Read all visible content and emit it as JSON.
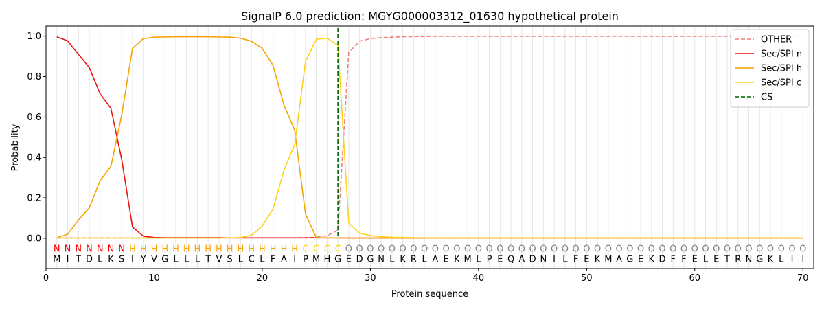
{
  "chart_data": {
    "type": "line",
    "title": "SignalP 6.0 prediction: MGYG000003312_01630 hypothetical protein",
    "xlabel": "Protein sequence",
    "ylabel": "Probability",
    "xlim": [
      0,
      71
    ],
    "ylim": [
      -0.15,
      1.05
    ],
    "xticks": [
      0,
      10,
      20,
      30,
      40,
      50,
      60,
      70
    ],
    "yticks": [
      0.0,
      0.2,
      0.4,
      0.6,
      0.8,
      1.0
    ],
    "xtick_labels": [
      "0",
      "10",
      "20",
      "30",
      "40",
      "50",
      "60",
      "70"
    ],
    "ytick_labels": [
      "0.0",
      "0.2",
      "0.4",
      "0.6",
      "0.8",
      "1.0"
    ],
    "legend_position": "top-right",
    "grid": "vertical lines at each residue",
    "sequence": [
      "M",
      "I",
      "T",
      "D",
      "L",
      "K",
      "S",
      "I",
      "Y",
      "V",
      "G",
      "L",
      "L",
      "L",
      "T",
      "V",
      "S",
      "L",
      "C",
      "L",
      "F",
      "A",
      "I",
      "P",
      "M",
      "H",
      "G",
      "E",
      "D",
      "G",
      "N",
      "L",
      "K",
      "R",
      "L",
      "A",
      "E",
      "K",
      "M",
      "L",
      "P",
      "E",
      "Q",
      "A",
      "D",
      "N",
      "I",
      "L",
      "F",
      "E",
      "K",
      "M",
      "A",
      "G",
      "E",
      "K",
      "D",
      "F",
      "F",
      "E",
      "L",
      "E",
      "T",
      "R",
      "N",
      "G",
      "K",
      "L",
      "I",
      "I"
    ],
    "region_labels": [
      "N",
      "N",
      "N",
      "N",
      "N",
      "N",
      "N",
      "H",
      "H",
      "H",
      "H",
      "H",
      "H",
      "H",
      "H",
      "H",
      "H",
      "H",
      "H",
      "H",
      "H",
      "H",
      "H",
      "C",
      "C",
      "C",
      "C",
      "O",
      "O",
      "O",
      "O",
      "O",
      "O",
      "O",
      "O",
      "O",
      "O",
      "O",
      "O",
      "O",
      "O",
      "O",
      "O",
      "O",
      "O",
      "O",
      "O",
      "O",
      "O",
      "O",
      "O",
      "O",
      "O",
      "O",
      "O",
      "O",
      "O",
      "O",
      "O",
      "O",
      "O",
      "O",
      "O",
      "O",
      "O",
      "O",
      "O",
      "O",
      "O",
      "O"
    ],
    "region_colors": {
      "N": "#ff0000",
      "H": "#ffa500",
      "C": "#ffd700",
      "O": "#808080"
    },
    "cs_position": 27,
    "series": [
      {
        "name": "OTHER",
        "color": "#f08080",
        "dash": "dashed",
        "values": [
          0.002,
          0.002,
          0.002,
          0.002,
          0.002,
          0.002,
          0.002,
          0.002,
          0.002,
          0.002,
          0.002,
          0.002,
          0.002,
          0.002,
          0.002,
          0.002,
          0.002,
          0.002,
          0.002,
          0.002,
          0.002,
          0.002,
          0.002,
          0.003,
          0.005,
          0.012,
          0.04,
          0.92,
          0.975,
          0.988,
          0.993,
          0.995,
          0.997,
          0.998,
          0.998,
          0.999,
          0.999,
          0.999,
          0.999,
          0.999,
          0.999,
          0.999,
          0.999,
          0.999,
          0.999,
          0.999,
          0.999,
          0.999,
          0.999,
          0.999,
          0.999,
          0.999,
          0.999,
          0.999,
          0.999,
          0.999,
          0.999,
          0.999,
          0.999,
          0.999,
          0.999,
          0.999,
          0.999,
          0.999,
          0.999,
          0.999,
          0.999,
          0.999,
          0.999,
          0.999
        ]
      },
      {
        "name": "Sec/SPI n",
        "color": "#ee1111",
        "dash": "solid",
        "values": [
          0.997,
          0.977,
          0.91,
          0.845,
          0.715,
          0.643,
          0.39,
          0.055,
          0.01,
          0.004,
          0.003,
          0.003,
          0.003,
          0.003,
          0.003,
          0.003,
          0.002,
          0.002,
          0.002,
          0.002,
          0.002,
          0.002,
          0.002,
          0.002,
          0.002,
          0.002,
          0.002,
          0.001,
          0.001,
          0.001,
          0.001,
          0.001,
          0.001,
          0.001,
          0.001,
          0.001,
          0.001,
          0.001,
          0.001,
          0.001,
          0.001,
          0.001,
          0.001,
          0.001,
          0.001,
          0.001,
          0.001,
          0.001,
          0.001,
          0.001,
          0.001,
          0.001,
          0.001,
          0.001,
          0.001,
          0.001,
          0.001,
          0.001,
          0.001,
          0.001,
          0.001,
          0.001,
          0.001,
          0.001,
          0.001,
          0.001,
          0.001,
          0.001,
          0.001,
          0.001
        ]
      },
      {
        "name": "Sec/SPI h",
        "color": "#f5a300",
        "dash": "solid",
        "values": [
          0.002,
          0.02,
          0.09,
          0.15,
          0.285,
          0.355,
          0.61,
          0.94,
          0.988,
          0.995,
          0.996,
          0.997,
          0.997,
          0.997,
          0.997,
          0.996,
          0.995,
          0.99,
          0.975,
          0.94,
          0.855,
          0.66,
          0.535,
          0.12,
          0.003,
          0.002,
          0.002,
          0.001,
          0.001,
          0.001,
          0.001,
          0.001,
          0.001,
          0.001,
          0.001,
          0.001,
          0.001,
          0.001,
          0.001,
          0.001,
          0.001,
          0.001,
          0.001,
          0.001,
          0.001,
          0.001,
          0.001,
          0.001,
          0.001,
          0.001,
          0.001,
          0.001,
          0.001,
          0.001,
          0.001,
          0.001,
          0.001,
          0.001,
          0.001,
          0.001,
          0.001,
          0.001,
          0.001,
          0.001,
          0.001,
          0.001,
          0.001,
          0.001,
          0.001,
          0.001
        ]
      },
      {
        "name": "Sec/SPI c",
        "color": "#ffd21a",
        "dash": "solid",
        "values": [
          0.001,
          0.001,
          0.001,
          0.001,
          0.001,
          0.001,
          0.001,
          0.001,
          0.001,
          0.001,
          0.001,
          0.001,
          0.001,
          0.001,
          0.001,
          0.001,
          0.002,
          0.004,
          0.015,
          0.06,
          0.145,
          0.335,
          0.465,
          0.875,
          0.985,
          0.99,
          0.955,
          0.075,
          0.025,
          0.013,
          0.008,
          0.005,
          0.004,
          0.003,
          0.002,
          0.002,
          0.002,
          0.002,
          0.002,
          0.002,
          0.002,
          0.002,
          0.002,
          0.002,
          0.002,
          0.002,
          0.002,
          0.002,
          0.002,
          0.002,
          0.002,
          0.002,
          0.002,
          0.002,
          0.002,
          0.002,
          0.002,
          0.002,
          0.002,
          0.002,
          0.002,
          0.002,
          0.002,
          0.002,
          0.002,
          0.002,
          0.002,
          0.002,
          0.002,
          0.002
        ]
      }
    ],
    "legend": [
      {
        "label": "OTHER",
        "color": "#f08080",
        "dash": "dashed"
      },
      {
        "label": "Sec/SPI n",
        "color": "#ee1111",
        "dash": "solid"
      },
      {
        "label": "Sec/SPI h",
        "color": "#f5a300",
        "dash": "solid"
      },
      {
        "label": "Sec/SPI c",
        "color": "#ffd21a",
        "dash": "solid"
      },
      {
        "label": "CS",
        "color": "#006400",
        "dash": "dashed"
      }
    ]
  }
}
